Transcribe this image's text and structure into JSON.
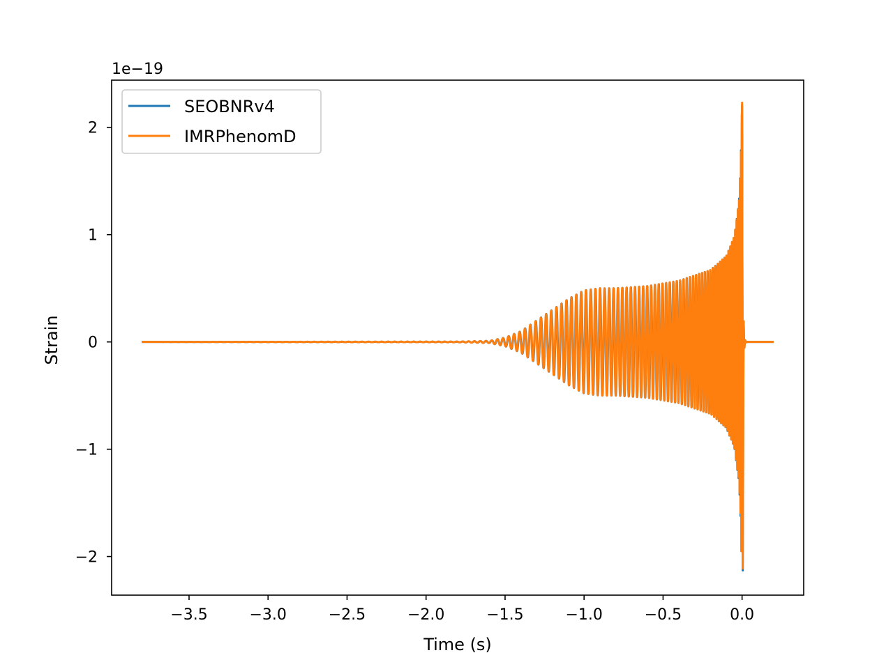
{
  "chart_data": {
    "type": "line",
    "title": "",
    "xlabel": "Time (s)",
    "ylabel": "Strain",
    "y_multiplier_label": "1e−19",
    "xlim": [
      -3.99,
      0.39
    ],
    "ylim": [
      -2.36,
      2.44
    ],
    "xticks": [
      -3.5,
      -3.0,
      -2.5,
      -2.0,
      -1.5,
      -1.0,
      -0.5,
      0.0
    ],
    "xtick_labels": [
      "−3.5",
      "−3.0",
      "−2.5",
      "−2.0",
      "−1.5",
      "−1.0",
      "−0.5",
      "0.0"
    ],
    "yticks": [
      -2,
      -1,
      0,
      1,
      2
    ],
    "ytick_labels": [
      "−2",
      "−1",
      "0",
      "1",
      "2"
    ],
    "grid": false,
    "legend_position": "top-left",
    "series": [
      {
        "name": "SEOBNRv4",
        "color": "#1f77b4",
        "x_range": [
          -3.8,
          0.2
        ],
        "peak_time": 0.0,
        "peak_amplitude": 2.2,
        "min_amplitude": -2.13,
        "envelope": [
          [
            -3.8,
            0.0
          ],
          [
            -1.8,
            0.003
          ],
          [
            -1.6,
            0.01
          ],
          [
            -1.5,
            0.04
          ],
          [
            -1.4,
            0.1
          ],
          [
            -1.3,
            0.2
          ],
          [
            -1.2,
            0.3
          ],
          [
            -1.1,
            0.4
          ],
          [
            -1.0,
            0.48
          ],
          [
            -0.9,
            0.5
          ],
          [
            -0.8,
            0.5
          ],
          [
            -0.6,
            0.52
          ],
          [
            -0.4,
            0.57
          ],
          [
            -0.2,
            0.67
          ],
          [
            -0.1,
            0.8
          ],
          [
            -0.05,
            0.98
          ],
          [
            -0.02,
            1.3
          ],
          [
            -0.01,
            1.6
          ],
          [
            0.0,
            2.2
          ],
          [
            0.005,
            0.0
          ],
          [
            0.2,
            0.0
          ]
        ]
      },
      {
        "name": "IMRPhenomD",
        "color": "#ff7f0e",
        "x_range": [
          -3.8,
          0.2
        ],
        "peak_time": 0.0,
        "peak_amplitude": 2.23,
        "min_amplitude": -2.11,
        "envelope": [
          [
            -3.8,
            0.0
          ],
          [
            -1.8,
            0.003
          ],
          [
            -1.6,
            0.01
          ],
          [
            -1.5,
            0.04
          ],
          [
            -1.4,
            0.1
          ],
          [
            -1.3,
            0.2
          ],
          [
            -1.2,
            0.3
          ],
          [
            -1.1,
            0.4
          ],
          [
            -1.0,
            0.48
          ],
          [
            -0.9,
            0.5
          ],
          [
            -0.8,
            0.5
          ],
          [
            -0.6,
            0.52
          ],
          [
            -0.4,
            0.57
          ],
          [
            -0.2,
            0.67
          ],
          [
            -0.1,
            0.8
          ],
          [
            -0.05,
            0.98
          ],
          [
            -0.02,
            1.3
          ],
          [
            -0.01,
            1.6
          ],
          [
            0.0,
            2.23
          ],
          [
            0.005,
            0.0
          ],
          [
            0.2,
            0.0
          ]
        ]
      }
    ]
  }
}
